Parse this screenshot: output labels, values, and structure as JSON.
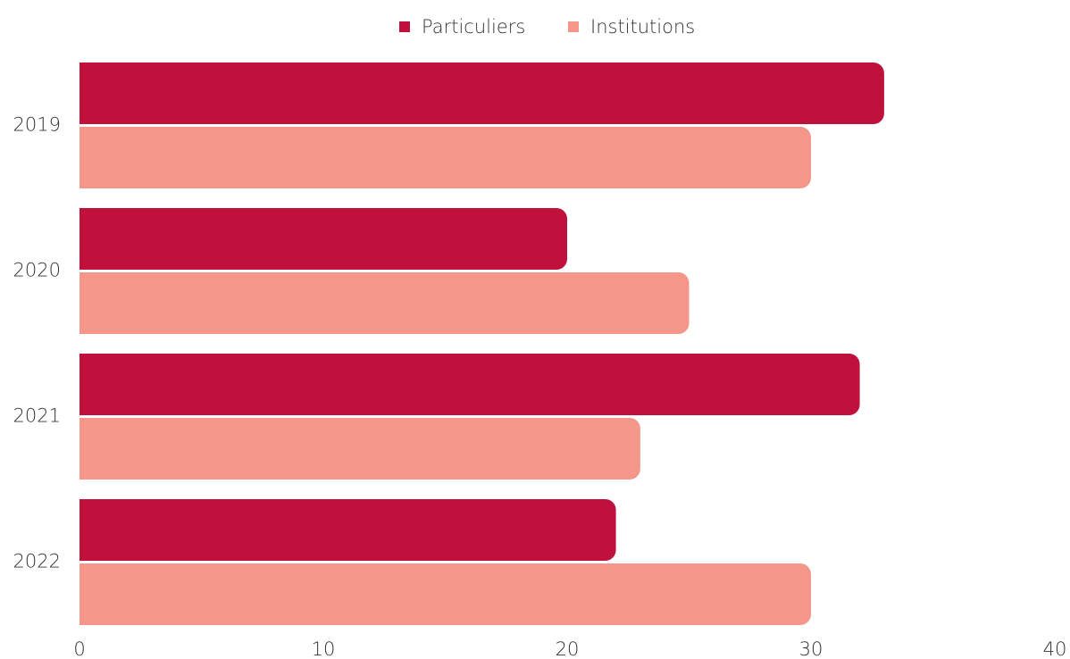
{
  "chart_data": {
    "type": "hbar",
    "categories": [
      "2019",
      "2020",
      "2021",
      "2022"
    ],
    "series": [
      {
        "name": "Particuliers",
        "color": "#c0103c",
        "values": [
          33,
          20,
          32,
          22
        ]
      },
      {
        "name": "Institutions",
        "color": "#f4978a",
        "values": [
          30,
          25,
          23,
          30
        ]
      }
    ],
    "xlim": [
      0,
      40
    ],
    "xticks": [
      0,
      10,
      20,
      30,
      40
    ],
    "legend": "top"
  }
}
